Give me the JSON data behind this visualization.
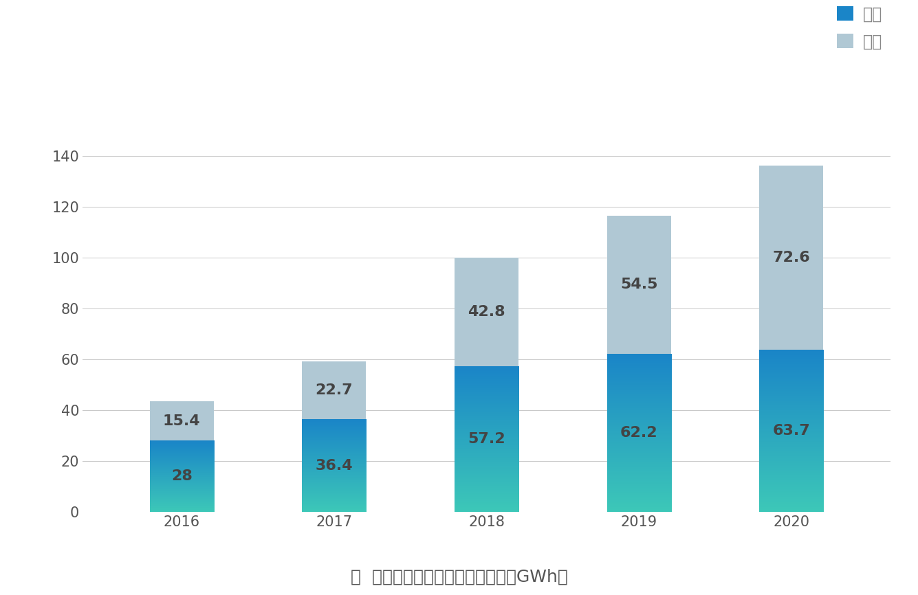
{
  "years": [
    "2016",
    "2017",
    "2018",
    "2019",
    "2020"
  ],
  "china_values": [
    28,
    36.4,
    57.2,
    62.2,
    63.7
  ],
  "overseas_values": [
    15.4,
    22.7,
    42.8,
    54.5,
    72.6
  ],
  "china_color_bottom": "#3dc8b8",
  "china_color_top": "#1a85c8",
  "overseas_color": "#b0c8d4",
  "bar_width": 0.42,
  "ylim": [
    0,
    150
  ],
  "yticks": [
    0,
    20,
    40,
    60,
    80,
    100,
    120,
    140
  ],
  "legend_china": "中国",
  "legend_overseas": "海外",
  "caption": "图  全球动力电池装机量快速增长（GWh）",
  "bg_color": "#ffffff",
  "grid_color": "#c8c8c8",
  "label_fontsize": 16,
  "tick_fontsize": 15,
  "caption_fontsize": 18,
  "legend_fontsize": 17,
  "legend_label_color": "#888888",
  "text_color": "#444444"
}
